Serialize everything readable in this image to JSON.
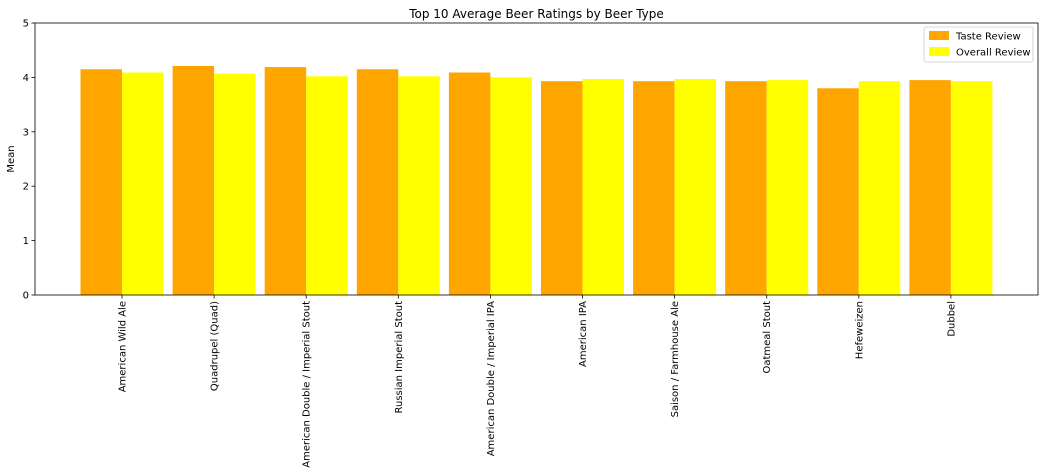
{
  "chart_data": {
    "type": "bar",
    "title": "Top 10 Average Beer Ratings by Beer Type",
    "xlabel": "",
    "ylabel": "Mean",
    "ylim": [
      0,
      5
    ],
    "yticks": [
      0,
      1,
      2,
      3,
      4,
      5
    ],
    "grid": false,
    "legend_position": "top-right",
    "categories": [
      "American Wild Ale",
      "Quadrupel (Quad)",
      "American Double / Imperial Stout",
      "Russian Imperial Stout",
      "American Double / Imperial IPA",
      "American IPA",
      "Saison / Farmhouse Ale",
      "Oatmeal Stout",
      "Hefeweizen",
      "Dubbel"
    ],
    "series": [
      {
        "name": "Taste Review",
        "color": "#FFA500",
        "values": [
          4.15,
          4.21,
          4.19,
          4.15,
          4.09,
          3.93,
          3.93,
          3.93,
          3.8,
          3.95
        ]
      },
      {
        "name": "Overall Review",
        "color": "#FFFF00",
        "values": [
          4.09,
          4.07,
          4.02,
          4.02,
          4.0,
          3.97,
          3.97,
          3.95,
          3.93,
          3.93
        ]
      }
    ]
  }
}
